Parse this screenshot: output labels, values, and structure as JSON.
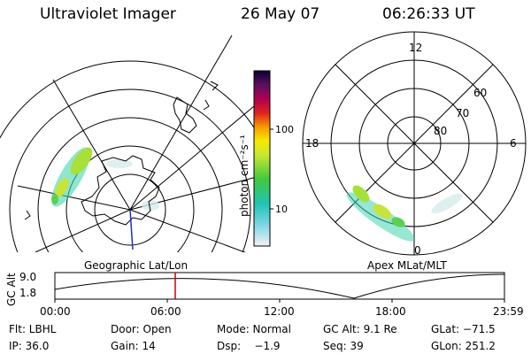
{
  "header": {
    "instrument": "Ultraviolet Imager",
    "date": "26 May 07",
    "time": "06:26:33 UT"
  },
  "colorbar": {
    "label": "photon cm⁻²s⁻¹",
    "ticks": [
      "100",
      "10"
    ],
    "scale": "log"
  },
  "geo_panel": {
    "label": "Geographic Lat/Lon"
  },
  "apex_panel": {
    "label": "Apex MLat/MLT",
    "mlt_labels": [
      "12",
      "18",
      "6",
      "0"
    ],
    "mlat_labels": [
      "60",
      "70",
      "80"
    ]
  },
  "altitude_plot": {
    "ylabel": "GC Alt",
    "yticks": [
      "9.0",
      "1.8"
    ],
    "xticks": [
      "00:00",
      "06:00",
      "12:00",
      "18:00",
      "23:59"
    ],
    "current_time_marker": "06:26"
  },
  "info": {
    "flt": "Flt: LBHL",
    "door": "Door: Open",
    "mode": "Mode: Normal",
    "gc_alt": "GC Alt: 9.1 Re",
    "glat": "GLat: −71.5",
    "ip": "IP: 36.0",
    "gain": "Gain: 14",
    "dsp": "Dsp:    −1.9",
    "seq": "Seq: 39",
    "glon": "GLon: 251.2"
  },
  "colors": {
    "marker": "#d00000",
    "meridian": "#2030c0"
  }
}
